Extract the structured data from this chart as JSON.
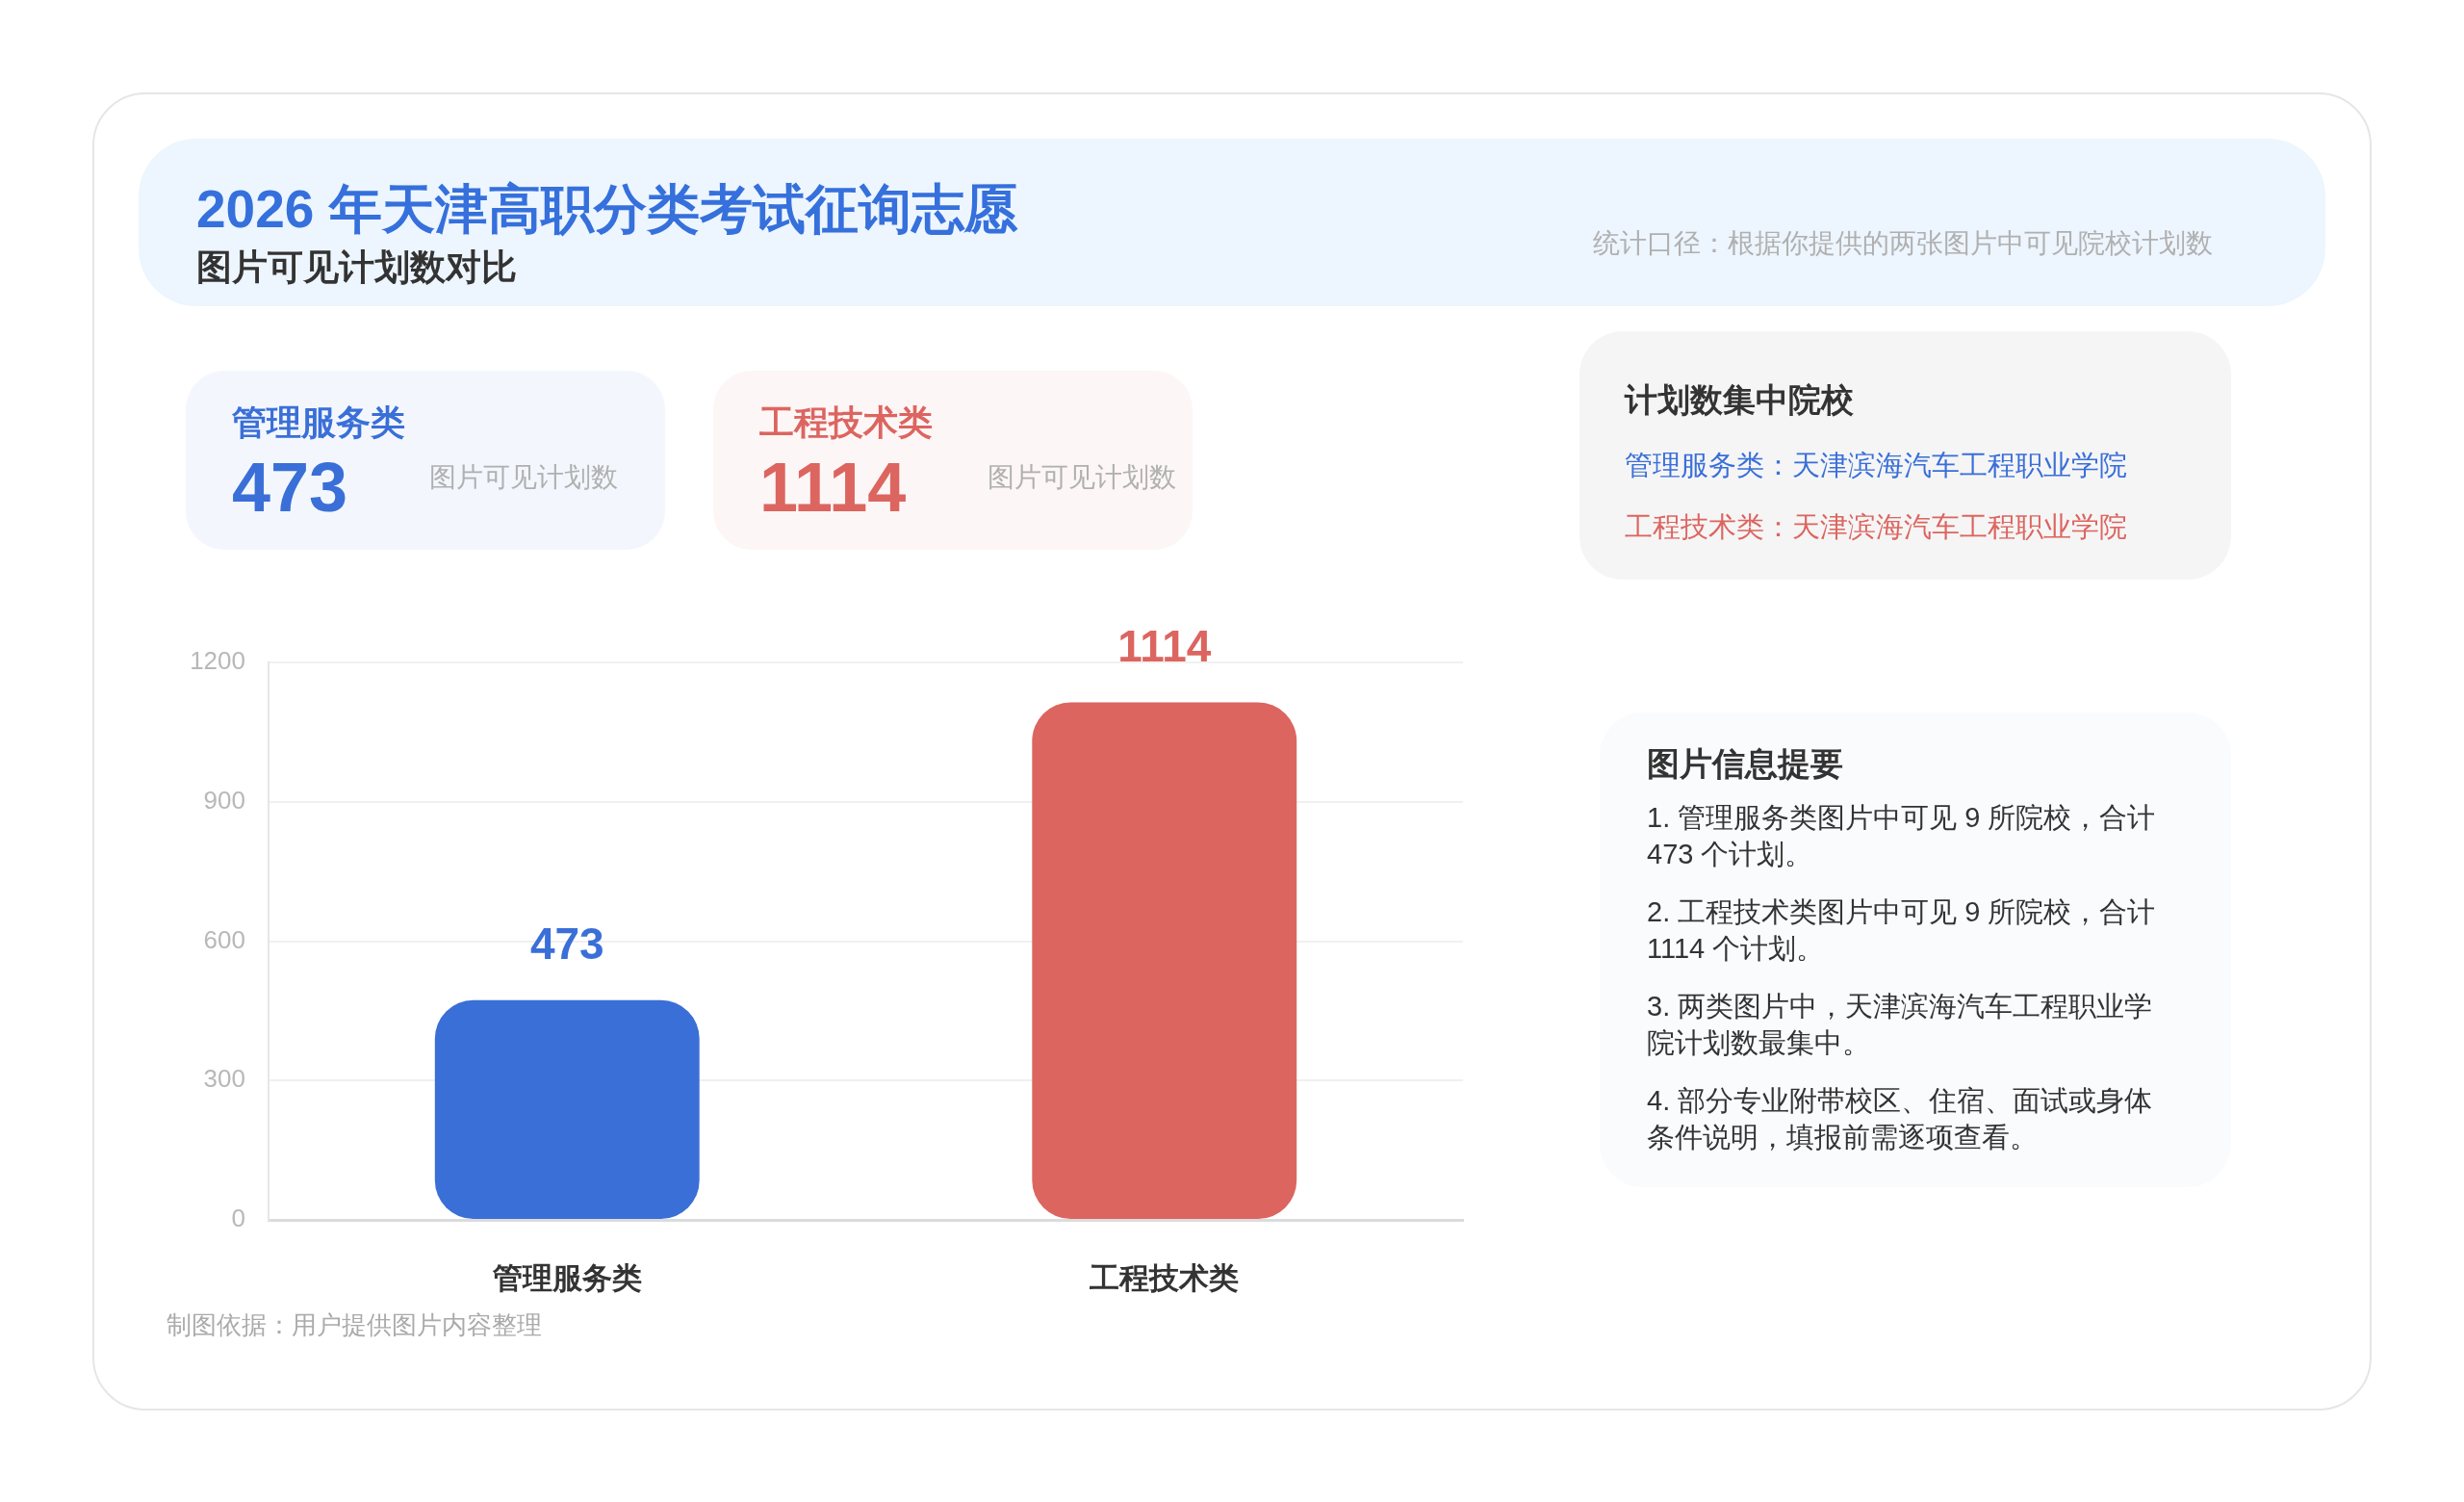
{
  "chart_data": [
    {
      "type": "bar",
      "title": "2026 年天津高职分类考试征询志愿",
      "subtitle": "图片可见计划数对比",
      "categories": [
        "管理服务类",
        "工程技术类"
      ],
      "values": [
        473,
        1114
      ],
      "colors": [
        "#3a6fd8",
        "#dc6560"
      ],
      "ylim": [
        0,
        1200
      ],
      "yticks": [
        0,
        300,
        600,
        900,
        1200
      ],
      "grid": "y",
      "data_labels": true,
      "annotations": [
        "统计口径：根据你提供的两张图片中可见院校计划数",
        "制图依据：用户提供图片内容整理"
      ]
    },
    {
      "type": "other",
      "categories": [
        "管理服务类",
        "工程技术类"
      ],
      "values": [
        473,
        1114
      ],
      "colors": [
        "#3a6fd8",
        "#dc6560"
      ],
      "data_labels": true,
      "annotations": [
        "图片可见计划数",
        "图片可见计划数"
      ]
    },
    {
      "type": "other",
      "title": "计划数集中院校",
      "annotations": [
        "管理服务类：天津滨海汽车工程职业学院",
        "工程技术类：天津滨海汽车工程职业学院"
      ],
      "colors": [
        "#3a6fd8",
        "#dc6560"
      ]
    },
    {
      "type": "other",
      "title": "图片信息提要",
      "annotations": [
        "1. 管理服务类图片中可见 9 所院校，合计 473 个计划。",
        "2. 工程技术类图片中可见 9 所院校，合计 1114 个计划。",
        "3. 两类图片中，天津滨海汽车工程职业学院计划数最集中。",
        "4. 部分专业附带校区、住宿、面试或身体条件说明，填报前需逐项查看。"
      ]
    }
  ]
}
